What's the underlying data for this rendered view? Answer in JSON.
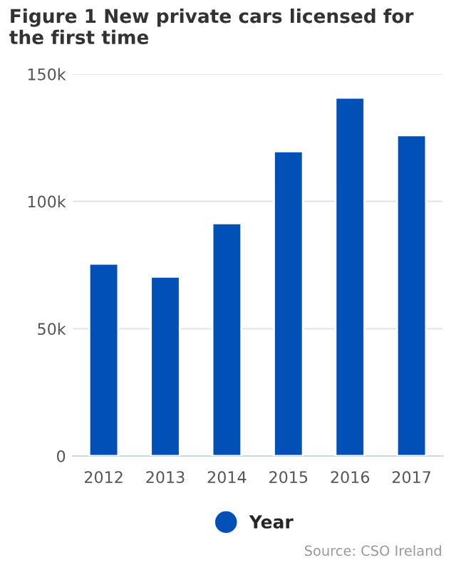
{
  "chart_data": {
    "type": "bar",
    "title": "Figure 1 New private cars licensed for the first time",
    "categories": [
      "2012",
      "2013",
      "2014",
      "2015",
      "2016",
      "2017"
    ],
    "series": [
      {
        "name": "Year",
        "color": "#0050b8",
        "values": [
          75500,
          70400,
          91400,
          119700,
          140700,
          126000
        ]
      }
    ],
    "ylim": [
      0,
      150000
    ],
    "yticks": [
      {
        "value": 0,
        "label": "0"
      },
      {
        "value": 50000,
        "label": "50k"
      },
      {
        "value": 100000,
        "label": "100k"
      },
      {
        "value": 150000,
        "label": "150k"
      }
    ],
    "grid": "y",
    "legend": "bottom",
    "annotations": [
      "Source: CSO Ireland"
    ]
  }
}
